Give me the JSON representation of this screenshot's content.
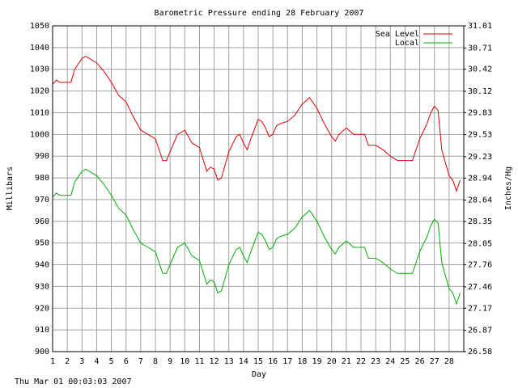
{
  "chart_data": {
    "type": "line",
    "title": "Barometric Pressure ending 28 February 2007",
    "subtitle": "Thu Mar 01 00:03:03 2007",
    "x_label": "Day",
    "y_label": "Millibars",
    "y2_label": "Inches/Hg",
    "xlim": [
      1,
      29
    ],
    "xticks": [
      1,
      2,
      3,
      4,
      5,
      6,
      7,
      8,
      9,
      10,
      11,
      12,
      13,
      14,
      15,
      16,
      17,
      18,
      19,
      20,
      21,
      22,
      23,
      24,
      25,
      26,
      27,
      28
    ],
    "ylim": [
      900,
      1050
    ],
    "yticks": [
      900,
      910,
      920,
      930,
      940,
      950,
      960,
      970,
      980,
      990,
      1000,
      1010,
      1020,
      1030,
      1040,
      1050
    ],
    "y2lim": [
      26.58,
      31.01
    ],
    "y2ticks": [
      26.58,
      26.87,
      27.17,
      27.46,
      27.76,
      28.05,
      28.35,
      28.64,
      28.94,
      29.23,
      29.53,
      29.83,
      30.12,
      30.42,
      30.71,
      31.01
    ],
    "grid": true,
    "legend": "upper right",
    "x": [
      1,
      1.25,
      1.5,
      2,
      2.25,
      2.5,
      3,
      3.25,
      3.5,
      4,
      4.5,
      5,
      5.5,
      6,
      6.5,
      7,
      7.5,
      8,
      8.25,
      8.5,
      8.75,
      9,
      9.5,
      10,
      10.25,
      10.5,
      11,
      11.5,
      11.75,
      12,
      12.25,
      12.5,
      13,
      13.5,
      13.75,
      14,
      14.25,
      14.5,
      15,
      15.25,
      15.5,
      15.75,
      16,
      16.25,
      16.5,
      17,
      17.5,
      18,
      18.5,
      19,
      19.5,
      20,
      20.25,
      20.5,
      21,
      21.5,
      22,
      22.25,
      22.5,
      23,
      23.5,
      24,
      24.5,
      25,
      25.5,
      26,
      26.5,
      26.75,
      27,
      27.25,
      27.5,
      27.75,
      28,
      28.25,
      28.5,
      28.75
    ],
    "series": [
      {
        "name": "Sea Level",
        "color": "#e00000",
        "values": [
          1023,
          1025,
          1024,
          1024,
          1024,
          1030,
          1035,
          1036,
          1035,
          1033,
          1029,
          1024,
          1018,
          1015,
          1008,
          1002,
          1000,
          998,
          993,
          988,
          988,
          992,
          1000,
          1002,
          999,
          996,
          994,
          983,
          985,
          984,
          979,
          980,
          992,
          999,
          1000,
          996,
          993,
          998,
          1007,
          1006,
          1003,
          999,
          1000,
          1004,
          1005,
          1006,
          1009,
          1014,
          1017,
          1012,
          1005,
          999,
          997,
          1000,
          1003,
          1000,
          1000,
          1000,
          995,
          995,
          993,
          990,
          988,
          988,
          988,
          998,
          1005,
          1010,
          1013,
          1011,
          993,
          987,
          981,
          979,
          974,
          979
        ]
      },
      {
        "name": "Local",
        "color": "#00b000",
        "values": [
          971,
          973,
          972,
          972,
          972,
          978,
          983,
          984,
          983,
          981,
          977,
          972,
          966,
          963,
          956,
          950,
          948,
          946,
          941,
          936,
          936,
          940,
          948,
          950,
          947,
          944,
          942,
          931,
          933,
          932,
          927,
          928,
          940,
          947,
          948,
          944,
          941,
          946,
          955,
          954,
          951,
          947,
          948,
          952,
          953,
          954,
          957,
          962,
          965,
          960,
          953,
          947,
          945,
          948,
          951,
          948,
          948,
          948,
          943,
          943,
          941,
          938,
          936,
          936,
          936,
          946,
          953,
          958,
          961,
          959,
          941,
          935,
          929,
          927,
          922,
          927
        ]
      }
    ]
  }
}
